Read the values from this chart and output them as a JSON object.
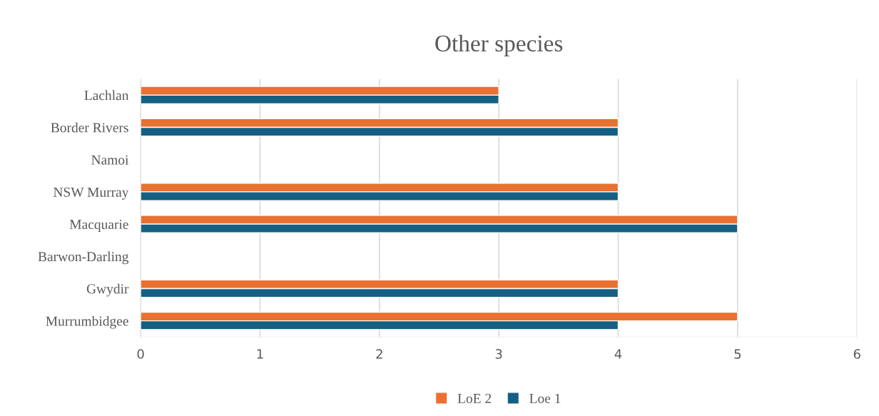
{
  "chart_data": {
    "type": "bar",
    "orientation": "horizontal",
    "title": "Other species",
    "categories": [
      "Lachlan",
      "Border Rivers",
      "Namoi",
      "NSW Murray",
      "Macquarie",
      "Barwon-Darling",
      "Gwydir",
      "Murrumbidgee"
    ],
    "series": [
      {
        "name": "LoE 2",
        "color": "#e97132",
        "values": [
          3,
          4,
          null,
          4,
          5,
          null,
          4,
          5
        ]
      },
      {
        "name": "Loe 1",
        "color": "#156082",
        "values": [
          3,
          4,
          null,
          4,
          5,
          null,
          4,
          4
        ]
      }
    ],
    "xlim": [
      0,
      6
    ],
    "xticks": [
      0,
      1,
      2,
      3,
      4,
      5,
      6
    ],
    "grid": "x",
    "legend": "bottom"
  }
}
